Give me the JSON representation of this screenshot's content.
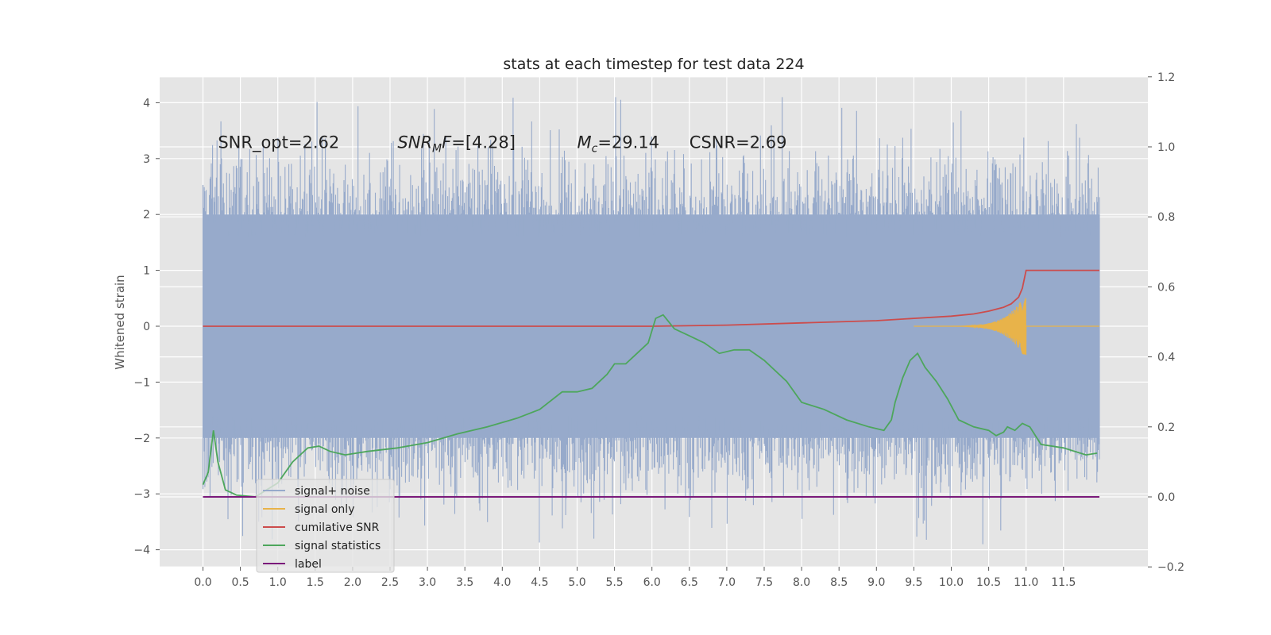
{
  "chart_data": {
    "type": "line",
    "title": "stats at each timestep for test data 224",
    "ylabel": "Whitened strain",
    "y2label": "",
    "xlim": [
      -0.5,
      12.4
    ],
    "ylim": [
      -4.3,
      4.45
    ],
    "y2lim": [
      -0.2,
      1.2
    ],
    "xticks": [
      "0.0",
      "0.5",
      "1.0",
      "1.5",
      "2.0",
      "2.5",
      "3.0",
      "3.5",
      "4.0",
      "4.5",
      "5.0",
      "5.5",
      "6.0",
      "6.5",
      "7.0",
      "7.5",
      "8.0",
      "8.5",
      "9.0",
      "9.5",
      "10.0",
      "10.5",
      "11.0",
      "11.5"
    ],
    "yticks": [
      "4",
      "3",
      "2",
      "1",
      "0",
      "−1",
      "−2",
      "−3",
      "−4"
    ],
    "y2ticks": [
      "1.2",
      "1.0",
      "0.8",
      "0.6",
      "0.4",
      "0.2",
      "0.0",
      "−0.2"
    ],
    "grid": true,
    "legend_position": "lower-left",
    "annotations": [
      {
        "text": "SNR_opt=2.62",
        "x": 0.2,
        "y": 3.3
      },
      {
        "text": "SNR_MF=[4.28]",
        "x": 2.6,
        "y": 3.3
      },
      {
        "text": "M_c=29.14",
        "x": 5.0,
        "y": 3.3
      },
      {
        "text": "CSNR=2.69",
        "x": 6.5,
        "y": 3.3
      }
    ],
    "series": [
      {
        "name": "signal+ noise",
        "color": "#97aacb",
        "axis": "left",
        "x_range": [
          0.0,
          11.98
        ],
        "band": [
          -2.0,
          2.0
        ],
        "peak_max": 4.1,
        "peak_min": -3.9
      },
      {
        "name": "signal only",
        "color": "#e8b34a",
        "axis": "left",
        "x_range": [
          9.5,
          11.0
        ],
        "peak_amplitude": 0.6
      },
      {
        "name": "cumilative SNR",
        "color": "#cc4c4c",
        "axis": "left",
        "x": [
          0.0,
          6.0,
          7.0,
          8.0,
          9.0,
          9.5,
          10.0,
          10.3,
          10.5,
          10.7,
          10.8,
          10.9,
          10.95,
          11.0,
          11.98
        ],
        "y": [
          0.0,
          0.0,
          0.02,
          0.06,
          0.1,
          0.14,
          0.18,
          0.22,
          0.27,
          0.34,
          0.4,
          0.52,
          0.68,
          1.0,
          1.0
        ]
      },
      {
        "name": "signal statistics",
        "color": "#4da65c",
        "axis": "right",
        "x": [
          0.0,
          0.07,
          0.14,
          0.2,
          0.3,
          0.45,
          0.7,
          1.0,
          1.2,
          1.4,
          1.55,
          1.7,
          1.9,
          2.2,
          2.6,
          3.0,
          3.4,
          3.8,
          4.2,
          4.5,
          4.8,
          5.0,
          5.2,
          5.4,
          5.5,
          5.65,
          5.8,
          5.95,
          6.05,
          6.15,
          6.3,
          6.5,
          6.7,
          6.9,
          7.1,
          7.3,
          7.5,
          7.8,
          8.0,
          8.3,
          8.6,
          8.9,
          9.1,
          9.2,
          9.25,
          9.35,
          9.45,
          9.55,
          9.65,
          9.8,
          9.95,
          10.1,
          10.3,
          10.5,
          10.6,
          10.7,
          10.75,
          10.85,
          10.95,
          11.05,
          11.2,
          11.5,
          11.8,
          11.95
        ],
        "y": [
          0.035,
          0.07,
          0.19,
          0.1,
          0.02,
          0.005,
          0.0,
          0.04,
          0.1,
          0.14,
          0.145,
          0.13,
          0.12,
          0.13,
          0.14,
          0.155,
          0.18,
          0.2,
          0.225,
          0.25,
          0.3,
          0.3,
          0.31,
          0.35,
          0.38,
          0.38,
          0.41,
          0.44,
          0.51,
          0.52,
          0.48,
          0.46,
          0.44,
          0.41,
          0.42,
          0.42,
          0.39,
          0.33,
          0.27,
          0.25,
          0.22,
          0.2,
          0.19,
          0.22,
          0.27,
          0.34,
          0.39,
          0.41,
          0.37,
          0.33,
          0.28,
          0.22,
          0.2,
          0.19,
          0.175,
          0.185,
          0.2,
          0.19,
          0.21,
          0.2,
          0.15,
          0.14,
          0.12,
          0.125
        ]
      },
      {
        "name": "label",
        "color": "#7b1a7b",
        "axis": "right",
        "x": [
          0.0,
          11.98
        ],
        "y": [
          0.0,
          0.0
        ]
      }
    ],
    "legend_overlap_text": "cumilative SNR"
  }
}
